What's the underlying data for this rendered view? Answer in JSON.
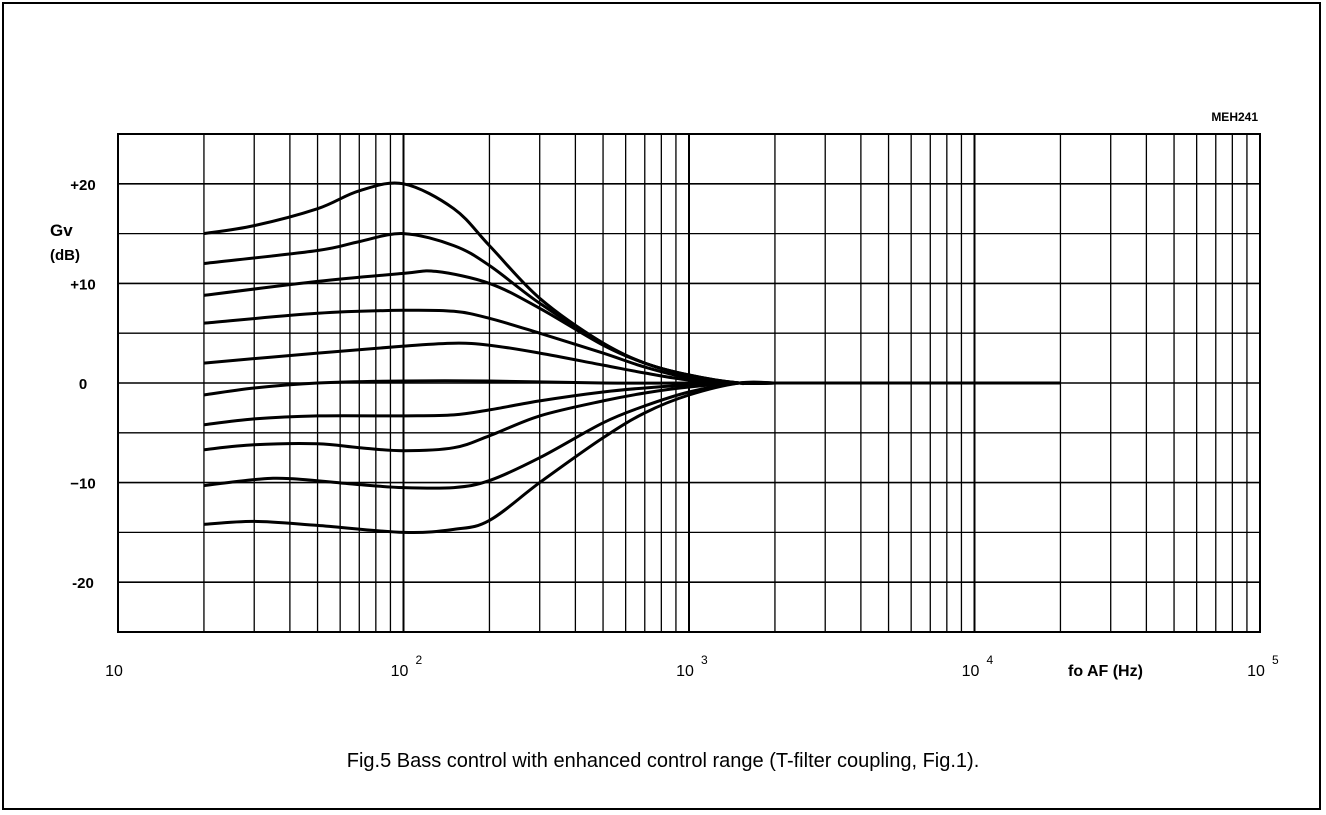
{
  "figure_code": "MEH241",
  "caption": "Fig.5  Bass control with enhanced control range (T-filter coupling, Fig.1).",
  "chart_data": {
    "type": "line",
    "x_scale": "log",
    "xlim": [
      10,
      100000
    ],
    "ylim": [
      -25,
      25
    ],
    "grid": true,
    "ylabel": "Gv",
    "ylabel_unit": "(dB)",
    "xlabel": "fo AF (Hz)",
    "y_ticks": [
      {
        "value": 20,
        "label": "+20"
      },
      {
        "value": 10,
        "label": "+10"
      },
      {
        "value": 0,
        "label": "0"
      },
      {
        "value": -10,
        "label": "−10"
      },
      {
        "value": -20,
        "label": "-20"
      }
    ],
    "x_ticks": [
      {
        "value": 10,
        "base": "10",
        "exp": ""
      },
      {
        "value": 100,
        "base": "10",
        "exp": "2"
      },
      {
        "value": 1000,
        "base": "10",
        "exp": "3"
      },
      {
        "value": 10000,
        "base": "10",
        "exp": "4"
      },
      {
        "value": 100000,
        "base": "10",
        "exp": "5"
      }
    ],
    "series": [
      {
        "points": [
          [
            20,
            15
          ],
          [
            30,
            15.8
          ],
          [
            50,
            17.5
          ],
          [
            70,
            19.3
          ],
          [
            100,
            20
          ],
          [
            150,
            17.5
          ],
          [
            200,
            13.8
          ],
          [
            300,
            8.5
          ],
          [
            500,
            4
          ],
          [
            700,
            2
          ],
          [
            1000,
            0.8
          ],
          [
            1500,
            0
          ],
          [
            2000,
            0
          ],
          [
            20000,
            0
          ]
        ]
      },
      {
        "points": [
          [
            20,
            12
          ],
          [
            50,
            13.3
          ],
          [
            70,
            14.2
          ],
          [
            100,
            15
          ],
          [
            150,
            13.8
          ],
          [
            200,
            11.8
          ],
          [
            300,
            8
          ],
          [
            500,
            4
          ],
          [
            700,
            2
          ],
          [
            1000,
            0.8
          ],
          [
            1500,
            0
          ],
          [
            2000,
            0
          ]
        ]
      },
      {
        "points": [
          [
            20,
            8.8
          ],
          [
            50,
            10.2
          ],
          [
            100,
            11
          ],
          [
            130,
            11.2
          ],
          [
            200,
            10
          ],
          [
            300,
            7.5
          ],
          [
            500,
            3.8
          ],
          [
            700,
            2
          ],
          [
            1000,
            0.7
          ],
          [
            1500,
            0
          ],
          [
            2000,
            0
          ]
        ]
      },
      {
        "points": [
          [
            20,
            6
          ],
          [
            50,
            7
          ],
          [
            100,
            7.3
          ],
          [
            150,
            7.2
          ],
          [
            200,
            6.5
          ],
          [
            300,
            5
          ],
          [
            500,
            3
          ],
          [
            700,
            1.6
          ],
          [
            1000,
            0.5
          ],
          [
            1500,
            0
          ],
          [
            2000,
            0
          ]
        ]
      },
      {
        "points": [
          [
            20,
            2
          ],
          [
            50,
            3
          ],
          [
            100,
            3.7
          ],
          [
            150,
            4
          ],
          [
            200,
            3.8
          ],
          [
            300,
            3
          ],
          [
            500,
            1.8
          ],
          [
            700,
            1
          ],
          [
            1000,
            0.3
          ],
          [
            1500,
            0
          ],
          [
            2000,
            0
          ]
        ]
      },
      {
        "points": [
          [
            20,
            -1.2
          ],
          [
            30,
            -0.5
          ],
          [
            50,
            0
          ],
          [
            100,
            0.2
          ],
          [
            200,
            0.2
          ],
          [
            500,
            0
          ],
          [
            1000,
            0
          ],
          [
            2000,
            0
          ]
        ]
      },
      {
        "points": [
          [
            20,
            -4.2
          ],
          [
            30,
            -3.6
          ],
          [
            50,
            -3.3
          ],
          [
            100,
            -3.3
          ],
          [
            150,
            -3.2
          ],
          [
            200,
            -2.7
          ],
          [
            300,
            -1.8
          ],
          [
            500,
            -0.9
          ],
          [
            700,
            -0.5
          ],
          [
            1000,
            -0.2
          ],
          [
            1500,
            0
          ],
          [
            2000,
            0
          ]
        ]
      },
      {
        "points": [
          [
            20,
            -6.7
          ],
          [
            30,
            -6.2
          ],
          [
            50,
            -6.1
          ],
          [
            70,
            -6.5
          ],
          [
            100,
            -6.8
          ],
          [
            150,
            -6.5
          ],
          [
            200,
            -5.3
          ],
          [
            300,
            -3.3
          ],
          [
            500,
            -1.8
          ],
          [
            700,
            -1
          ],
          [
            1000,
            -0.4
          ],
          [
            1500,
            0
          ],
          [
            2000,
            0
          ]
        ]
      },
      {
        "points": [
          [
            20,
            -10.3
          ],
          [
            30,
            -9.7
          ],
          [
            40,
            -9.6
          ],
          [
            70,
            -10.2
          ],
          [
            100,
            -10.5
          ],
          [
            150,
            -10.5
          ],
          [
            200,
            -9.8
          ],
          [
            300,
            -7.5
          ],
          [
            500,
            -4
          ],
          [
            700,
            -2.3
          ],
          [
            1000,
            -0.9
          ],
          [
            1500,
            0
          ],
          [
            2000,
            0
          ]
        ]
      },
      {
        "points": [
          [
            20,
            -14.2
          ],
          [
            30,
            -13.9
          ],
          [
            50,
            -14.3
          ],
          [
            100,
            -15
          ],
          [
            150,
            -14.7
          ],
          [
            200,
            -13.8
          ],
          [
            300,
            -10
          ],
          [
            500,
            -5.5
          ],
          [
            700,
            -3
          ],
          [
            1000,
            -1.2
          ],
          [
            1500,
            0
          ],
          [
            2000,
            0
          ]
        ]
      }
    ]
  }
}
